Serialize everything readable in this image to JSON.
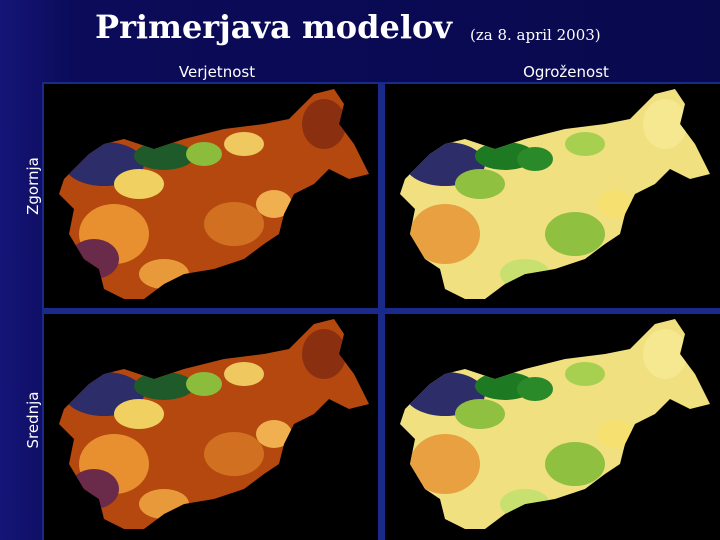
{
  "title": "Primerjava modelov",
  "subtitle": "(za 8. april 2003)",
  "columns": [
    "Verjetnost",
    "Ogroženost"
  ],
  "rows": [
    "Zgornja",
    "Srednja"
  ]
}
